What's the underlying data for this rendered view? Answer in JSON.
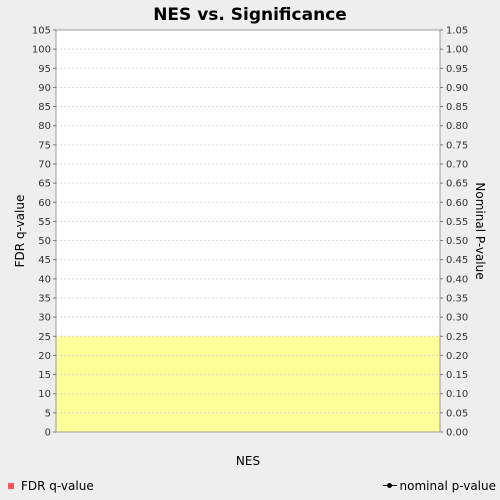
{
  "chart_data": {
    "type": "area",
    "title": "NES vs. Significance",
    "xlabel": "NES",
    "ylabel_left": "FDR q-value",
    "ylabel_right": "Nominal P-value",
    "y_left": {
      "range": [
        0,
        105
      ],
      "ticks": [
        "0",
        "5",
        "10",
        "15",
        "20",
        "25",
        "30",
        "35",
        "40",
        "45",
        "50",
        "55",
        "60",
        "65",
        "70",
        "75",
        "80",
        "85",
        "90",
        "95",
        "100",
        "105"
      ]
    },
    "y_right": {
      "range": [
        0,
        1.05
      ],
      "ticks": [
        "0.00",
        "0.05",
        "0.10",
        "0.15",
        "0.20",
        "0.25",
        "0.30",
        "0.35",
        "0.40",
        "0.45",
        "0.50",
        "0.55",
        "0.60",
        "0.65",
        "0.70",
        "0.75",
        "0.80",
        "0.85",
        "0.90",
        "0.95",
        "1.00",
        "1.05"
      ]
    },
    "highlight_band": {
      "y_from": 0,
      "y_to": 25,
      "color": "#ffff99"
    },
    "grid": true,
    "series": [
      {
        "name": "FDR q-value",
        "color": "#ff5555",
        "values": []
      },
      {
        "name": "nominal p-value",
        "color": "#000000",
        "values": []
      }
    ],
    "legend_position": "bottom"
  }
}
